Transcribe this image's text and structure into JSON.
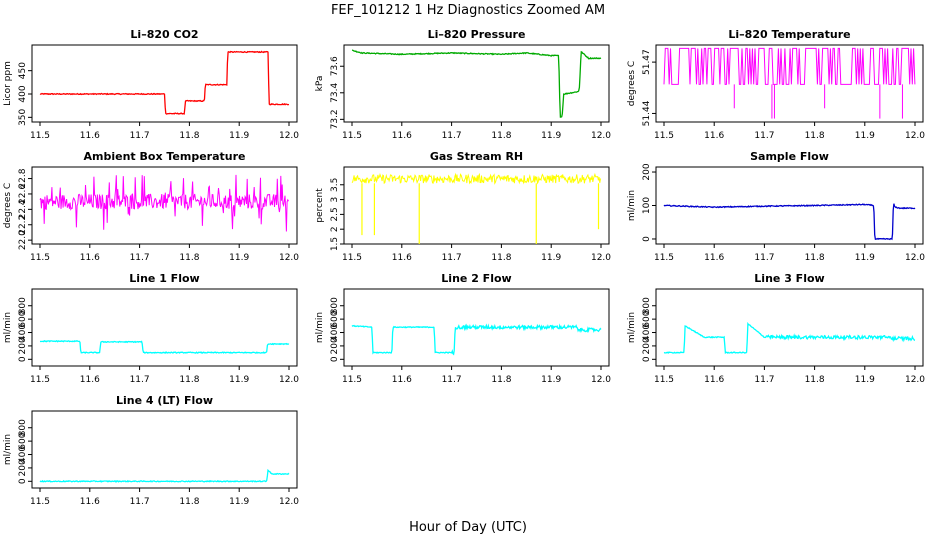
{
  "title": "FEF_101212  1 Hz Diagnostics Zoomed AM",
  "xlabel": "Hour of Day (UTC)",
  "chart_data": [
    {
      "type": "line",
      "title": "Li–820 CO2",
      "ylabel": "Licor ppm",
      "color": "#ff0000",
      "xlim": [
        11.5,
        12.0
      ],
      "ylim": [
        340,
        505
      ],
      "yticks": [
        350,
        400,
        450
      ],
      "ytick_labels": [
        "350",
        "400",
        "450"
      ],
      "x": [
        11.5,
        11.75,
        11.752,
        11.79,
        11.792,
        11.83,
        11.832,
        11.875,
        11.877,
        11.958,
        11.96,
        12.0
      ],
      "y": [
        400,
        400,
        358,
        358,
        385,
        385,
        420,
        420,
        490,
        490,
        378,
        378
      ]
    },
    {
      "type": "line",
      "title": "Li–820 Pressure",
      "ylabel": "kPa",
      "color": "#00aa00",
      "xlim": [
        11.5,
        12.0
      ],
      "ylim": [
        73.18,
        73.76
      ],
      "yticks": [
        73.2,
        73.4,
        73.6
      ],
      "ytick_labels": [
        "73.2",
        "73.4",
        "73.6"
      ],
      "x": [
        11.5,
        11.52,
        11.6,
        11.7,
        11.8,
        11.85,
        11.9,
        11.915,
        11.918,
        11.922,
        11.925,
        11.955,
        11.957,
        11.96,
        11.975,
        12.0
      ],
      "y": [
        73.72,
        73.7,
        73.69,
        73.7,
        73.69,
        73.7,
        73.68,
        73.68,
        73.22,
        73.22,
        73.39,
        73.41,
        73.45,
        73.71,
        73.66,
        73.66
      ]
    },
    {
      "type": "line",
      "title": "Li–820 Temperature",
      "ylabel": "degrees C",
      "color": "#ff00ff",
      "xlim": [
        11.5,
        12.0
      ],
      "ylim": [
        51.435,
        51.48
      ],
      "yticks": [
        51.44,
        51.47
      ],
      "ytick_labels": [
        "51.44",
        "51.47"
      ],
      "baseline": 51.457,
      "spike_high": 51.478,
      "dips_x": [
        11.64,
        11.715,
        11.72,
        11.82,
        11.93,
        11.975
      ],
      "dips_y": [
        51.443,
        51.437,
        51.437,
        51.443,
        51.437,
        51.437
      ]
    },
    {
      "type": "line",
      "title": "Ambient Box Temperature",
      "ylabel": "degrees C",
      "color": "#ff00ff",
      "xlim": [
        11.5,
        12.0
      ],
      "ylim": [
        21.95,
        22.95
      ],
      "yticks": [
        22.0,
        22.2,
        22.4,
        22.6,
        22.8
      ],
      "ytick_labels": [
        "22.0",
        "22.2",
        "22.4",
        "22.6",
        "22.8"
      ],
      "band_low": 22.4,
      "band_high": 22.6,
      "noise_min": 22.1,
      "noise_max": 22.85
    },
    {
      "type": "line",
      "title": "Gas Stream RH",
      "ylabel": "percent",
      "color": "#ffff00",
      "xlim": [
        11.5,
        12.0
      ],
      "ylim": [
        1.5,
        4.1
      ],
      "yticks": [
        1.5,
        2.0,
        2.5,
        3.0,
        3.5
      ],
      "ytick_labels": [
        "1.5",
        "2",
        "2.5",
        "3",
        "3.5"
      ],
      "band_low": 3.55,
      "band_high": 3.85,
      "dips_x": [
        11.52,
        11.545,
        11.635,
        11.87,
        11.995
      ],
      "dips_y": [
        1.8,
        1.8,
        1.5,
        1.5,
        2.0
      ]
    },
    {
      "type": "line",
      "title": "Sample Flow",
      "ylabel": "ml/min",
      "color": "#0000cc",
      "xlim": [
        11.5,
        12.0
      ],
      "ylim": [
        -15,
        215
      ],
      "yticks": [
        0,
        100,
        200
      ],
      "ytick_labels": [
        "0",
        "100",
        "200"
      ],
      "x": [
        11.5,
        11.6,
        11.7,
        11.8,
        11.9,
        11.918,
        11.92,
        11.955,
        11.957,
        11.96,
        11.97,
        12.0
      ],
      "y": [
        100,
        95,
        98,
        100,
        103,
        100,
        0,
        0,
        108,
        95,
        92,
        92
      ]
    },
    {
      "type": "line",
      "title": "Line 1 Flow",
      "ylabel": "ml/min",
      "color": "#00ffff",
      "xlim": [
        11.5,
        12.0
      ],
      "ylim": [
        -100,
        1050
      ],
      "yticks": [
        0,
        200,
        400,
        600,
        800
      ],
      "ytick_labels": [
        "0",
        "200",
        "400",
        "600",
        "800"
      ],
      "x": [
        11.5,
        11.58,
        11.582,
        11.62,
        11.622,
        11.705,
        11.707,
        11.955,
        11.957,
        12.0
      ],
      "y": [
        270,
        270,
        100,
        100,
        260,
        260,
        100,
        100,
        230,
        230
      ]
    },
    {
      "type": "line",
      "title": "Line 2 Flow",
      "ylabel": "ml/min",
      "color": "#00ffff",
      "xlim": [
        11.5,
        12.0
      ],
      "ylim": [
        -100,
        1050
      ],
      "yticks": [
        0,
        200,
        400,
        600,
        800
      ],
      "ytick_labels": [
        "0",
        "200",
        "400",
        "600",
        "800"
      ],
      "x": [
        11.5,
        11.54,
        11.542,
        11.58,
        11.582,
        11.665,
        11.667,
        11.705,
        11.707,
        11.95,
        11.955,
        12.0
      ],
      "y": [
        500,
        480,
        100,
        100,
        480,
        480,
        100,
        100,
        480,
        480,
        440,
        440
      ]
    },
    {
      "type": "line",
      "title": "Line 3 Flow",
      "ylabel": "ml/min",
      "color": "#00ffff",
      "xlim": [
        11.5,
        12.0
      ],
      "ylim": [
        -100,
        1050
      ],
      "yticks": [
        0,
        200,
        400,
        600,
        800
      ],
      "ytick_labels": [
        "0",
        "200",
        "400",
        "600",
        "800"
      ],
      "x": [
        11.5,
        11.54,
        11.542,
        11.58,
        11.582,
        11.62,
        11.622,
        11.665,
        11.667,
        11.7,
        11.702,
        11.95,
        11.952,
        12.0
      ],
      "y": [
        100,
        100,
        500,
        330,
        330,
        330,
        100,
        100,
        530,
        330,
        330,
        330,
        310,
        310
      ]
    },
    {
      "type": "line",
      "title": "Line 4 (LT) Flow",
      "ylabel": "ml/min",
      "color": "#00ffff",
      "xlim": [
        11.5,
        12.0
      ],
      "ylim": [
        -100,
        1050
      ],
      "yticks": [
        0,
        200,
        400,
        600,
        800
      ],
      "ytick_labels": [
        "0",
        "200",
        "400",
        "600",
        "800"
      ],
      "x": [
        11.5,
        11.955,
        11.958,
        11.965,
        12.0
      ],
      "y": [
        0,
        0,
        170,
        110,
        110
      ]
    }
  ],
  "xticks": [
    11.5,
    11.6,
    11.7,
    11.8,
    11.9,
    12.0
  ],
  "xtick_labels": [
    "11.5",
    "11.6",
    "11.7",
    "11.8",
    "11.9",
    "12.0"
  ]
}
